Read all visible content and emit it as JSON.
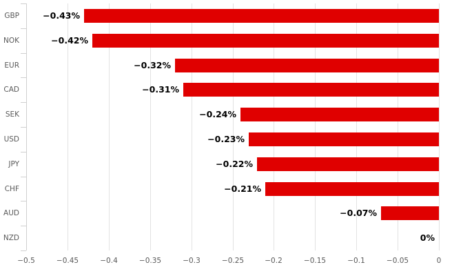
{
  "chart_data": {
    "type": "bar",
    "orientation": "horizontal",
    "title": "",
    "xlabel": "",
    "ylabel": "",
    "grid": true,
    "legend": false,
    "categories": [
      "GBP",
      "NOK",
      "EUR",
      "CAD",
      "SEK",
      "USD",
      "JPY",
      "CHF",
      "AUD",
      "NZD"
    ],
    "values": [
      -0.43,
      -0.42,
      -0.32,
      -0.31,
      -0.24,
      -0.23,
      -0.22,
      -0.21,
      -0.07,
      0
    ],
    "value_labels": [
      "−0.43%",
      "−0.42%",
      "−0.32%",
      "−0.31%",
      "−0.24%",
      "−0.23%",
      "−0.22%",
      "−0.21%",
      "−0.07%",
      "0%"
    ],
    "x_ticks": [
      -0.5,
      -0.45,
      -0.4,
      -0.35,
      -0.3,
      -0.25,
      -0.2,
      -0.15,
      -0.1,
      -0.05,
      0
    ],
    "x_tick_labels": [
      "−0.5",
      "−0.45",
      "−0.4",
      "−0.35",
      "−0.3",
      "−0.25",
      "−0.2",
      "−0.15",
      "−0.1",
      "−0.05",
      "0"
    ],
    "xlim": [
      -0.5,
      0
    ],
    "colors": {
      "bar": "#e00000",
      "value_label": "#000000",
      "category_label": "#595959",
      "tick_label": "#595959",
      "gridline": "#e2e2e2",
      "axis_line": "#cfcfcf",
      "background": "#ffffff"
    }
  }
}
